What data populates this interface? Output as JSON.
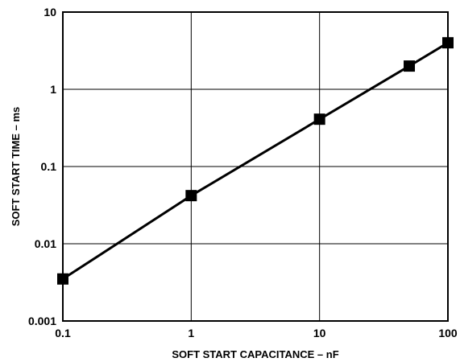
{
  "chart_data": {
    "type": "line",
    "title": "",
    "xlabel": "SOFT START CAPACITANCE – nF",
    "ylabel": "SOFT START TIME – ms",
    "xscale": "log",
    "yscale": "log",
    "xlim": [
      0.1,
      100
    ],
    "ylim": [
      0.001,
      10
    ],
    "grid": true,
    "x_ticks": [
      {
        "value": 0.1,
        "label": "0.1"
      },
      {
        "value": 1,
        "label": "1"
      },
      {
        "value": 10,
        "label": "10"
      },
      {
        "value": 100,
        "label": "100"
      }
    ],
    "y_ticks": [
      {
        "value": 0.001,
        "label": "0.001"
      },
      {
        "value": 0.01,
        "label": "0.01"
      },
      {
        "value": 0.1,
        "label": "0.1"
      },
      {
        "value": 1,
        "label": "1"
      },
      {
        "value": 10,
        "label": "10"
      }
    ],
    "series": [
      {
        "marker": "square",
        "color": "#000000",
        "x": [
          0.1,
          1,
          10,
          50,
          100
        ],
        "y": [
          0.0035,
          0.042,
          0.41,
          2.0,
          4.0
        ]
      }
    ]
  }
}
